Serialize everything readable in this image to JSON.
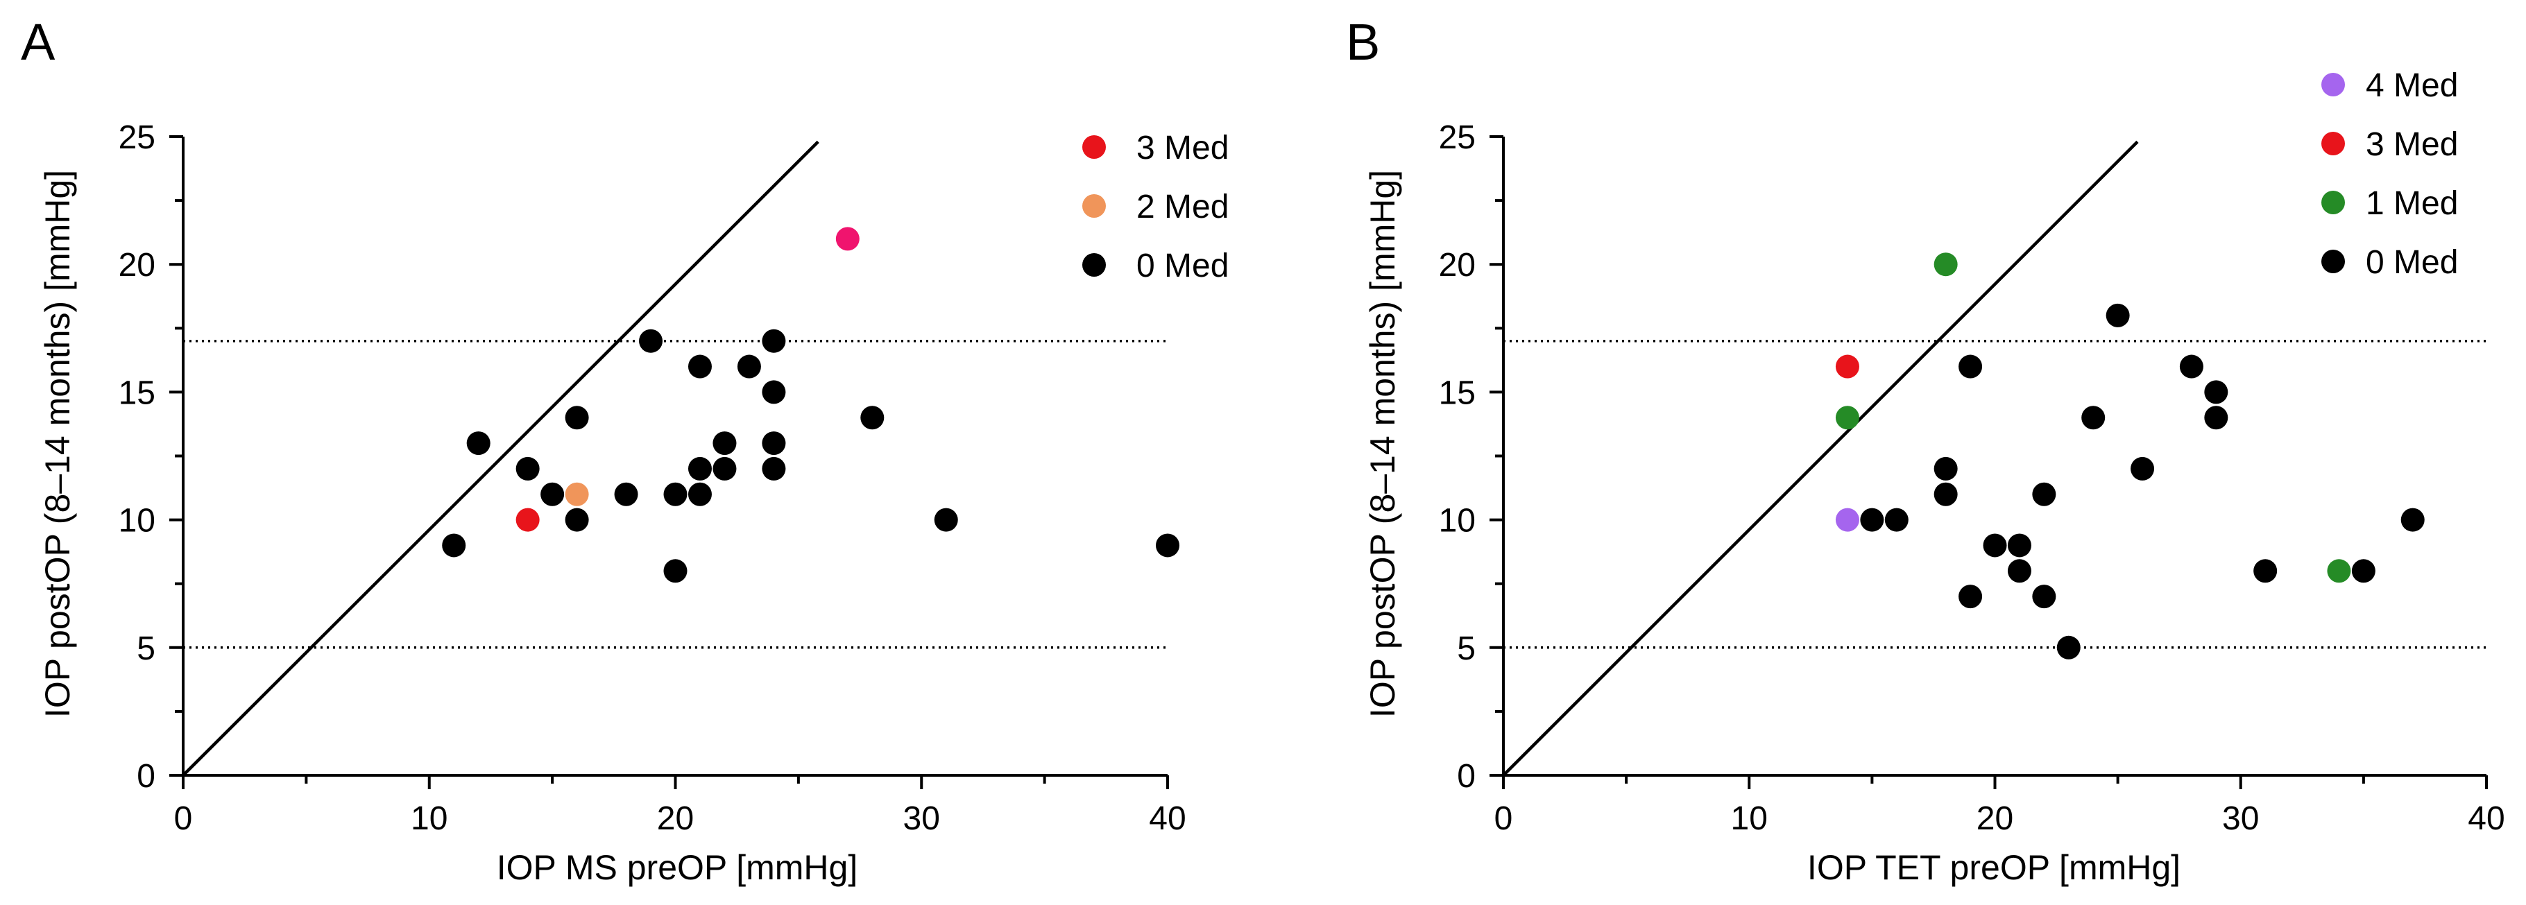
{
  "chart_data": [
    {
      "type": "scatter",
      "panel_label": "A",
      "title": "",
      "xlabel": "IOP MS preOP [mmHg]",
      "ylabel": "IOP postOP (8–14 months) [mmHg]",
      "xlim": [
        0,
        40
      ],
      "ylim": [
        0,
        25
      ],
      "xticks": [
        0,
        10,
        20,
        30,
        40
      ],
      "yticks": [
        0,
        5,
        10,
        15,
        20,
        25
      ],
      "x_minor_step": 5,
      "y_minor_step": 2.5,
      "grid": false,
      "legend_position": "top-right",
      "identity_line": {
        "from": [
          0,
          0
        ],
        "to": [
          25.8,
          24.8
        ]
      },
      "threshold_lines": [
        17,
        5
      ],
      "series": [
        {
          "name": "3 Med",
          "color": "#e8141b",
          "in_legend": true,
          "points": [
            [
              14,
              10
            ]
          ]
        },
        {
          "name": "2 Med",
          "color": "#f0955a",
          "in_legend": true,
          "points": [
            [
              16,
              11
            ]
          ]
        },
        {
          "name": "0 Med",
          "color": "#000000",
          "in_legend": true,
          "points": [
            [
              11,
              9
            ],
            [
              12,
              13
            ],
            [
              14,
              12
            ],
            [
              15,
              11
            ],
            [
              16,
              14
            ],
            [
              16,
              10
            ],
            [
              18,
              11
            ],
            [
              19,
              17
            ],
            [
              20,
              11
            ],
            [
              20,
              8
            ],
            [
              21,
              16
            ],
            [
              21,
              12
            ],
            [
              21,
              11
            ],
            [
              22,
              13
            ],
            [
              22,
              12
            ],
            [
              23,
              16
            ],
            [
              24,
              17
            ],
            [
              24,
              15
            ],
            [
              24,
              13
            ],
            [
              24,
              12
            ],
            [
              28,
              14
            ],
            [
              31,
              10
            ],
            [
              40,
              9
            ]
          ]
        },
        {
          "name": "",
          "color": "#f0146e",
          "in_legend": false,
          "points": [
            [
              27,
              21
            ]
          ]
        }
      ]
    },
    {
      "type": "scatter",
      "panel_label": "B",
      "title": "",
      "xlabel": "IOP TET preOP [mmHg]",
      "ylabel": "IOP postOP (8–14 months) [mmHg]",
      "xlim": [
        0,
        40
      ],
      "ylim": [
        0,
        25
      ],
      "xticks": [
        0,
        10,
        20,
        30,
        40
      ],
      "yticks": [
        0,
        5,
        10,
        15,
        20,
        25
      ],
      "x_minor_step": 5,
      "y_minor_step": 2.5,
      "grid": false,
      "legend_position": "top-right",
      "identity_line": {
        "from": [
          0,
          0
        ],
        "to": [
          25.8,
          24.8
        ]
      },
      "threshold_lines": [
        17,
        5
      ],
      "series": [
        {
          "name": "4 Med",
          "color": "#a565ee",
          "in_legend": true,
          "points": [
            [
              14,
              10
            ]
          ]
        },
        {
          "name": "3 Med",
          "color": "#e8141b",
          "in_legend": true,
          "points": [
            [
              14,
              16
            ]
          ]
        },
        {
          "name": "1 Med",
          "color": "#258b26",
          "in_legend": true,
          "points": [
            [
              18,
              20
            ],
            [
              14,
              14
            ],
            [
              34,
              8
            ]
          ]
        },
        {
          "name": "0 Med",
          "color": "#000000",
          "in_legend": true,
          "points": [
            [
              15,
              10
            ],
            [
              16,
              10
            ],
            [
              18,
              12
            ],
            [
              18,
              11
            ],
            [
              19,
              16
            ],
            [
              19,
              7
            ],
            [
              20,
              9
            ],
            [
              21,
              9
            ],
            [
              21,
              8
            ],
            [
              22,
              11
            ],
            [
              22,
              7
            ],
            [
              23,
              5
            ],
            [
              24,
              14
            ],
            [
              25,
              18
            ],
            [
              26,
              12
            ],
            [
              28,
              16
            ],
            [
              29,
              15
            ],
            [
              29,
              14
            ],
            [
              31,
              8
            ],
            [
              35,
              8
            ],
            [
              37,
              10
            ]
          ]
        }
      ]
    }
  ]
}
